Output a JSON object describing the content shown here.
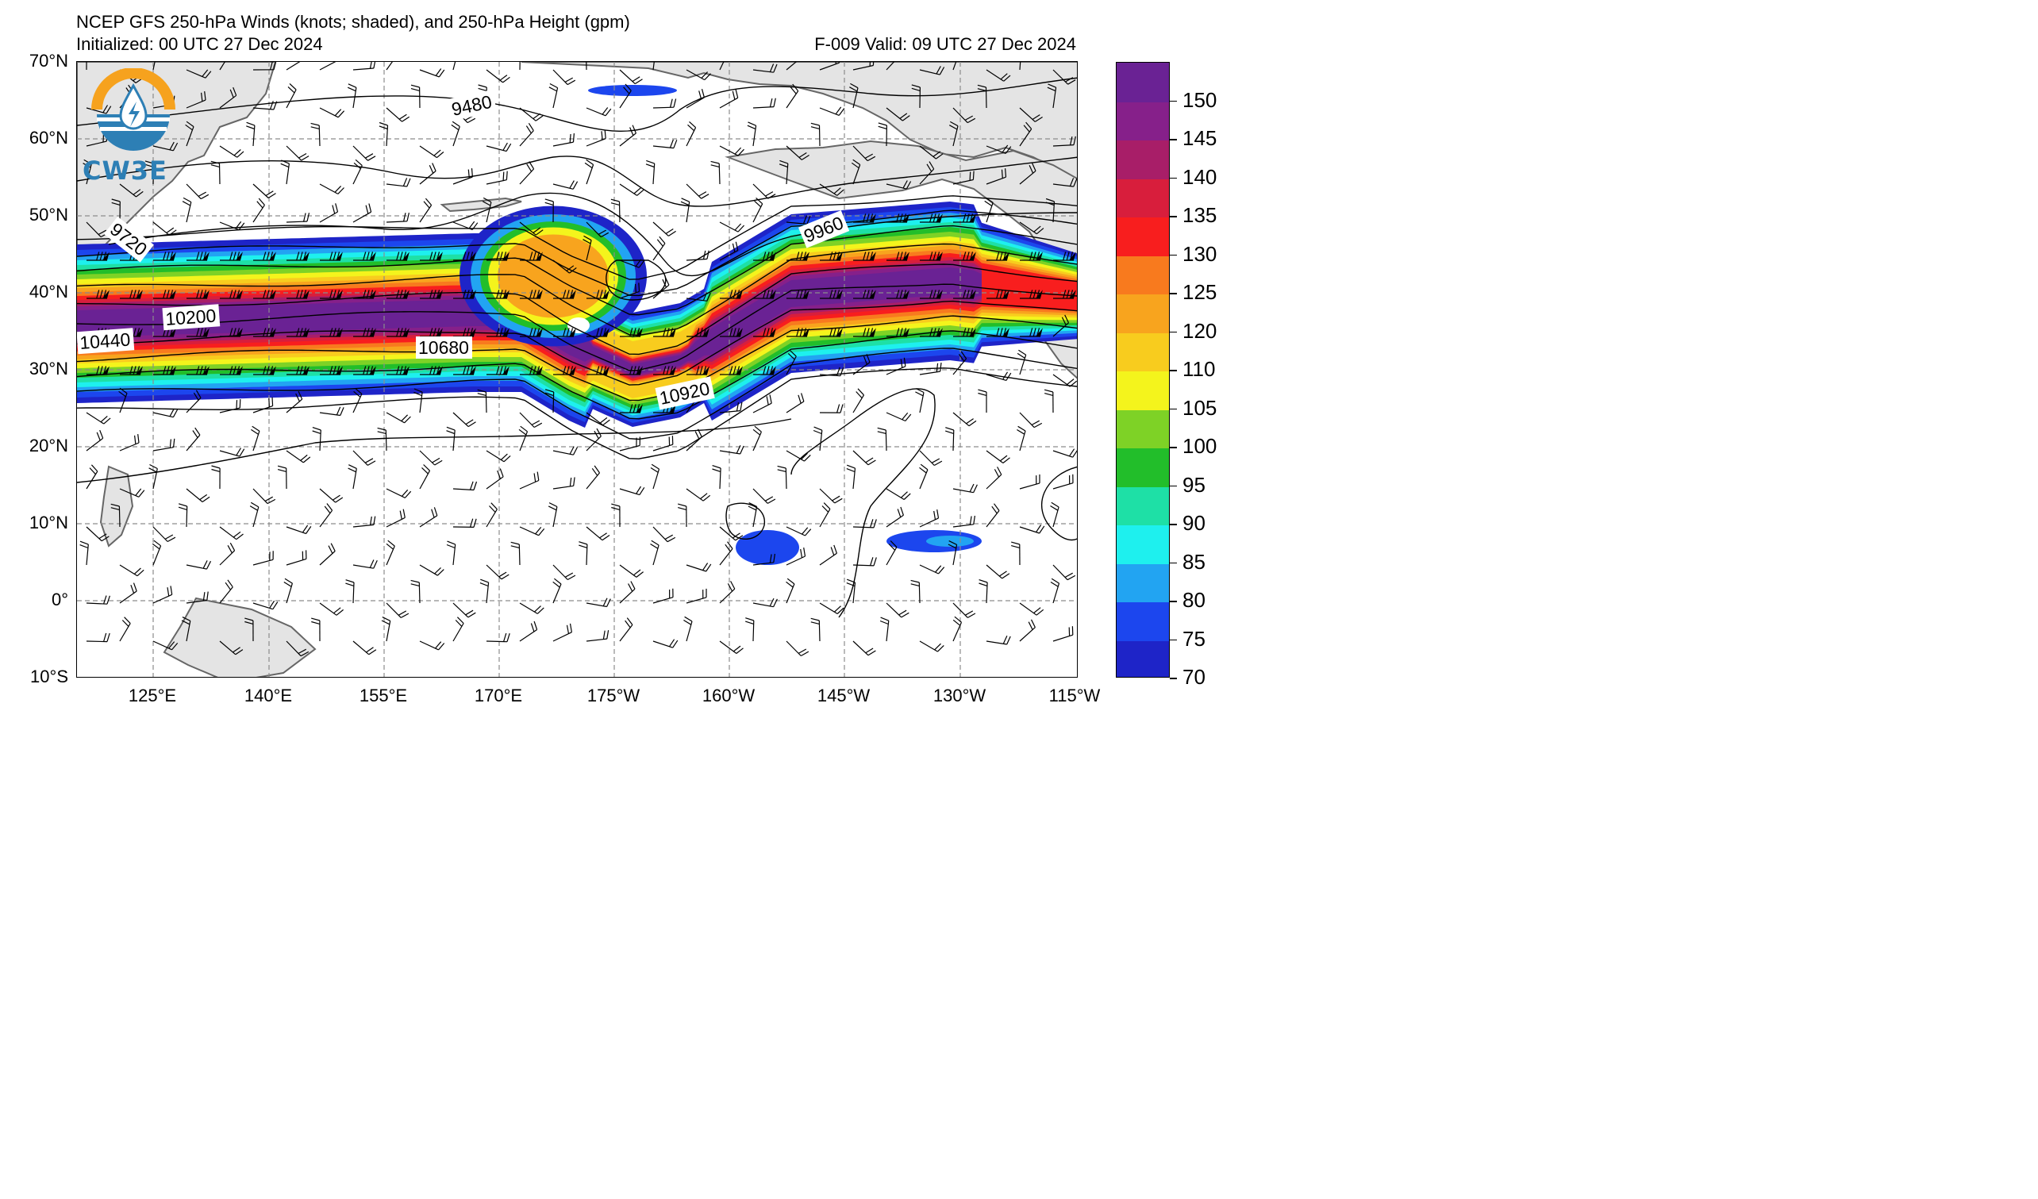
{
  "header": {
    "title": "NCEP GFS 250-hPa Winds (knots; shaded), and 250-hPa Height (gpm)",
    "initialized": "Initialized: 00 UTC 27 Dec 2024",
    "valid": "F-009  Valid: 09 UTC 27 Dec 2024"
  },
  "logo": {
    "text": "CW3E",
    "icon": "cw3e-water-drop-logo-icon"
  },
  "map": {
    "lat_labels": [
      "70°N",
      "60°N",
      "50°N",
      "40°N",
      "30°N",
      "20°N",
      "10°N",
      "0°",
      "10°S"
    ],
    "lon_labels": [
      "125°E",
      "140°E",
      "155°E",
      "170°E",
      "175°W",
      "160°W",
      "145°W",
      "130°W",
      "115°W"
    ],
    "contour_labels": [
      "9480",
      "9720",
      "9960",
      "10200",
      "10440",
      "10680",
      "10920"
    ],
    "colors": {
      "land": "#e4e4e4",
      "coast": "#666666",
      "height_contour": "#000000",
      "grid": "#8c8c8c"
    }
  },
  "colorbar": {
    "labels": [
      "70",
      "75",
      "80",
      "85",
      "90",
      "95",
      "100",
      "105",
      "110",
      "120",
      "125",
      "130",
      "135",
      "140",
      "145",
      "150"
    ],
    "colors": [
      "#1e24c8",
      "#1c46ee",
      "#22a4f2",
      "#1ef0ee",
      "#1ee0a6",
      "#22be2a",
      "#7ed226",
      "#f4f41c",
      "#f8cc1e",
      "#f8a41e",
      "#f87a1e",
      "#f81e1e",
      "#d81e3c",
      "#a81e68",
      "#86208a",
      "#6a2294"
    ]
  }
}
